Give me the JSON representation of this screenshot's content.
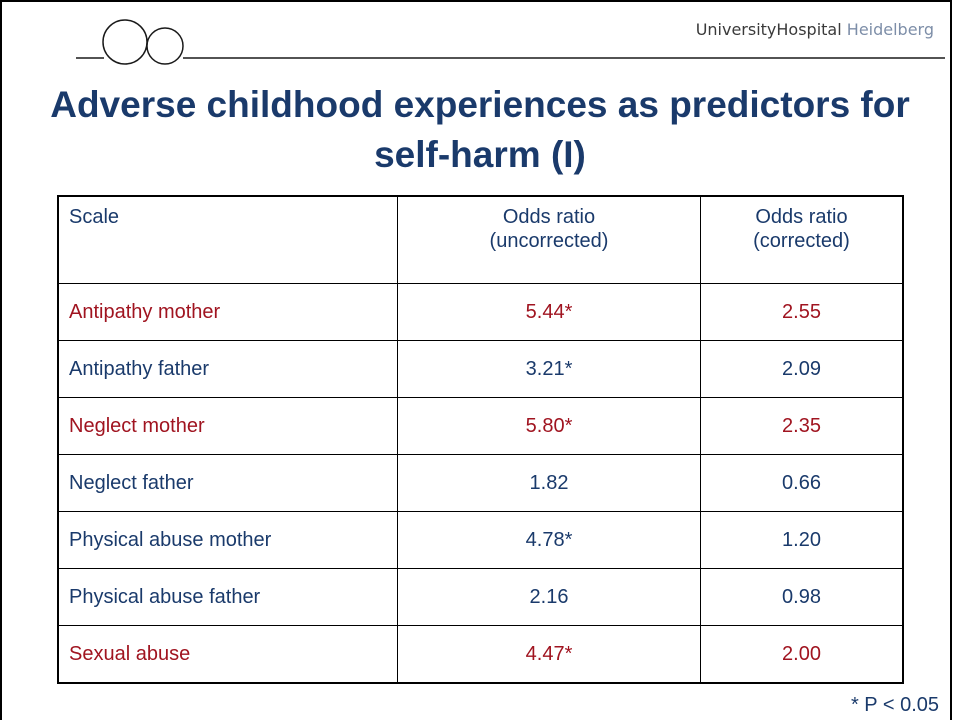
{
  "header": {
    "brand_primary": "UniversityHospital",
    "brand_secondary": "Heidelberg"
  },
  "title": "Adverse childhood experiences as predictors for self-harm (I)",
  "table": {
    "columns": [
      [
        "Scale"
      ],
      [
        "Odds ratio",
        "(uncorrected)"
      ],
      [
        "Odds ratio",
        "(corrected)"
      ]
    ],
    "rows": [
      {
        "cells": [
          "Antipathy mother",
          "5.44*",
          "2.55"
        ],
        "color": "#a01420"
      },
      {
        "cells": [
          "Antipathy father",
          "3.21*",
          "2.09"
        ],
        "color": "#1a3a6b"
      },
      {
        "cells": [
          "Neglect mother",
          "5.80*",
          "2.35"
        ],
        "color": "#a01420"
      },
      {
        "cells": [
          "Neglect father",
          "1.82",
          "0.66"
        ],
        "color": "#1a3a6b"
      },
      {
        "cells": [
          "Physical abuse mother",
          "4.78*",
          "1.20"
        ],
        "color": "#1a3a6b"
      },
      {
        "cells": [
          "Physical abuse father",
          "2.16",
          "0.98"
        ],
        "color": "#1a3a6b"
      },
      {
        "cells": [
          "Sexual abuse",
          "4.47*",
          "2.00"
        ],
        "color": "#a01420"
      }
    ],
    "header_color": "#1a3a6b"
  },
  "footnote": "* P < 0.05"
}
